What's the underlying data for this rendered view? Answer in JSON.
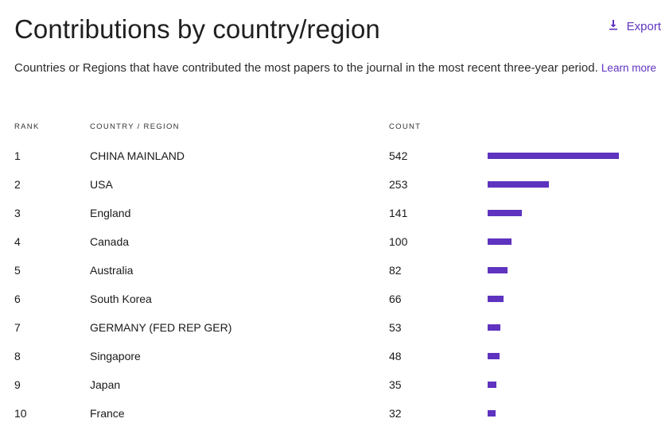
{
  "header": {
    "title": "Contributions by country/region",
    "export_label": "Export"
  },
  "description": {
    "text": "Countries or Regions that have contributed the most papers to the journal in the most recent three-year period.",
    "link_label": "Learn more"
  },
  "table": {
    "columns": [
      "RANK",
      "COUNTRY / REGION",
      "COUNT"
    ],
    "rows": [
      {
        "rank": "1",
        "country": "CHINA MAINLAND",
        "count": 542
      },
      {
        "rank": "2",
        "country": "USA",
        "count": 253
      },
      {
        "rank": "3",
        "country": "England",
        "count": 141
      },
      {
        "rank": "4",
        "country": "Canada",
        "count": 100
      },
      {
        "rank": "5",
        "country": "Australia",
        "count": 82
      },
      {
        "rank": "6",
        "country": "South Korea",
        "count": 66
      },
      {
        "rank": "7",
        "country": "GERMANY (FED REP GER)",
        "count": 53
      },
      {
        "rank": "8",
        "country": "Singapore",
        "count": 48
      },
      {
        "rank": "9",
        "country": "Japan",
        "count": 35
      },
      {
        "rank": "10",
        "country": "France",
        "count": 32
      }
    ]
  },
  "colors": {
    "accent": "#5e33bf"
  },
  "icons": {
    "export": "download-icon"
  }
}
